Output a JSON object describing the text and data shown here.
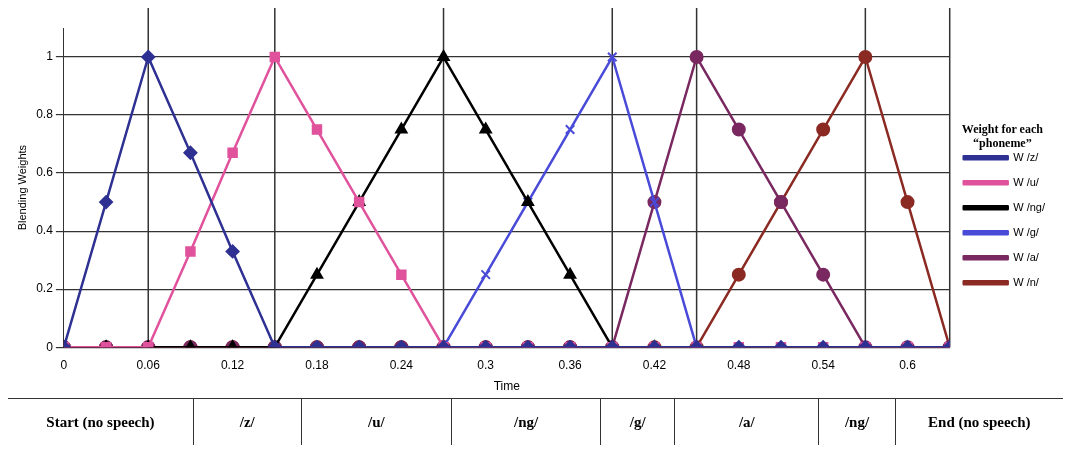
{
  "chart_data": {
    "type": "line",
    "xlabel": "Time",
    "ylabel": "Blending Weights",
    "legend_title": "Weight for each “phoneme”",
    "x": [
      0,
      0.03,
      0.06,
      0.09,
      0.12,
      0.15,
      0.18,
      0.21,
      0.24,
      0.27,
      0.3,
      0.33,
      0.36,
      0.39,
      0.42,
      0.45,
      0.48,
      0.51,
      0.54,
      0.57,
      0.6,
      0.63
    ],
    "xlim": [
      0,
      0.63
    ],
    "xticks": [
      0,
      0.06,
      0.12,
      0.18,
      0.24,
      0.3,
      0.36,
      0.42,
      0.48,
      0.54,
      0.6
    ],
    "ylim": [
      0,
      1.1
    ],
    "yticks": [
      0,
      0.2,
      0.4,
      0.6,
      0.8,
      1
    ],
    "grid": "y",
    "legend": "right",
    "series": [
      {
        "name": "W /z/",
        "color": "#2e3192",
        "marker": "diamond",
        "values": [
          0,
          0.5,
          1,
          0.67,
          0.33,
          0,
          0,
          0,
          0,
          0,
          0,
          0,
          0,
          0,
          0,
          0,
          0,
          0,
          0,
          0,
          0,
          0
        ]
      },
      {
        "name": "W /u/",
        "color": "#e0529c",
        "marker": "square",
        "values": [
          0,
          0,
          0,
          0.33,
          0.67,
          1,
          0.75,
          0.5,
          0.25,
          0,
          0,
          0,
          0,
          0,
          0,
          0,
          0,
          0,
          0,
          0,
          0,
          0
        ]
      },
      {
        "name": "W /ng/",
        "color": "#000000",
        "marker": "triangle",
        "values": [
          0,
          0,
          0,
          0,
          0,
          0,
          0.25,
          0.5,
          0.75,
          1,
          0.75,
          0.5,
          0.25,
          0,
          0,
          null,
          null,
          null,
          null,
          null,
          null,
          null
        ]
      },
      {
        "name": "W /g/",
        "color": "#4a4ad8",
        "marker": "cross",
        "values": [
          null,
          null,
          null,
          null,
          null,
          null,
          null,
          null,
          null,
          0,
          0.25,
          0.5,
          0.75,
          1,
          0.5,
          0,
          null,
          null,
          null,
          null,
          null,
          null
        ]
      },
      {
        "name": "W /a/",
        "color": "#7a2860",
        "marker": "circle",
        "values": [
          0,
          0,
          0,
          0,
          0,
          0,
          0,
          0,
          0,
          0,
          0,
          0,
          0,
          0,
          0.5,
          1,
          0.75,
          0.5,
          0.25,
          0,
          0,
          0
        ]
      },
      {
        "name": "W /n/",
        "color": "#8b2a23",
        "marker": "circle",
        "values": [
          0,
          0,
          0,
          0,
          0,
          0,
          0,
          0,
          0,
          0,
          0,
          0,
          0,
          0,
          0,
          0,
          0.25,
          0.5,
          0.75,
          1,
          0.5,
          0
        ]
      }
    ],
    "ref_lines": [
      {
        "axis": "x",
        "value": 0.06,
        "color": "#333333"
      },
      {
        "axis": "x",
        "value": 0.15,
        "color": "#333333"
      },
      {
        "axis": "x",
        "value": 0.27,
        "color": "#333333"
      },
      {
        "axis": "x",
        "value": 0.39,
        "color": "#333333"
      },
      {
        "axis": "x",
        "value": 0.45,
        "color": "#333333"
      },
      {
        "axis": "x",
        "value": 0.57,
        "color": "#333333"
      },
      {
        "axis": "x",
        "value": 0.63,
        "color": "#333333"
      }
    ],
    "annotations": [
      "Start (no speech)",
      "/z/",
      "/u/",
      "/ng/",
      "/g/",
      "/a/",
      "/ng/",
      "End (no speech)"
    ]
  }
}
